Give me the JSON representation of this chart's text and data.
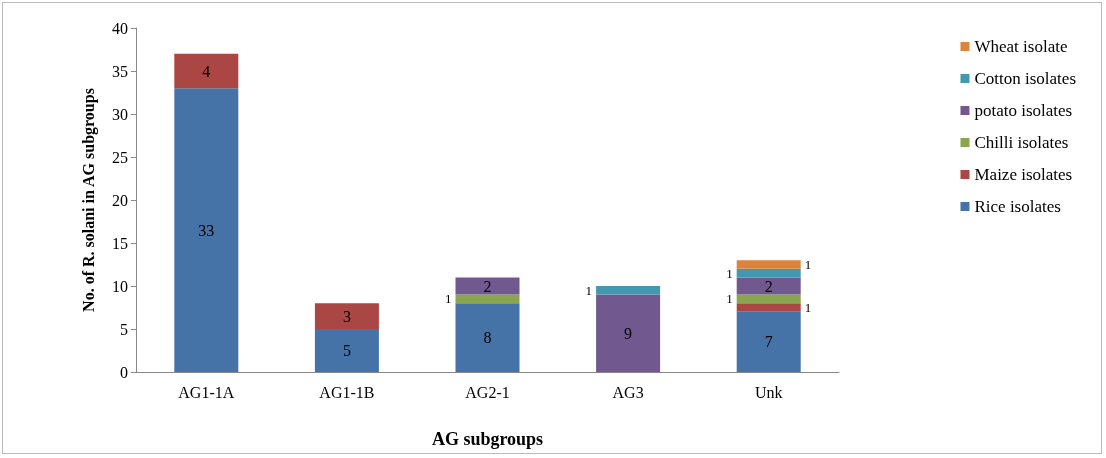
{
  "chart_data": {
    "type": "bar",
    "stacked": true,
    "xlabel": "AG subgroups",
    "ylabel": "No. of R. solani in AG subgroups",
    "categories": [
      "AG1-1A",
      "AG1-1B",
      "AG2-1",
      "AG3",
      "Unk"
    ],
    "series": [
      {
        "name": "Rice isolates",
        "color": "#4572a7",
        "values": [
          33,
          5,
          8,
          null,
          7
        ]
      },
      {
        "name": "Maize isolates",
        "color": "#aa4643",
        "values": [
          4,
          3,
          null,
          null,
          1
        ]
      },
      {
        "name": "Chilli isolates",
        "color": "#89a54e",
        "values": [
          null,
          null,
          1,
          null,
          1
        ]
      },
      {
        "name": "potato isolates",
        "color": "#71588f",
        "values": [
          null,
          null,
          2,
          9,
          2
        ]
      },
      {
        "name": "Cotton isolates",
        "color": "#4198af",
        "values": [
          null,
          null,
          null,
          1,
          1
        ]
      },
      {
        "name": "Wheat isolate",
        "color": "#db843d",
        "values": [
          null,
          null,
          null,
          null,
          1
        ]
      }
    ],
    "ylim": [
      0,
      40
    ],
    "yticks": [
      0,
      5,
      10,
      15,
      20,
      25,
      30,
      35,
      40
    ],
    "grid": false,
    "legend": "right",
    "data_labels": true
  }
}
